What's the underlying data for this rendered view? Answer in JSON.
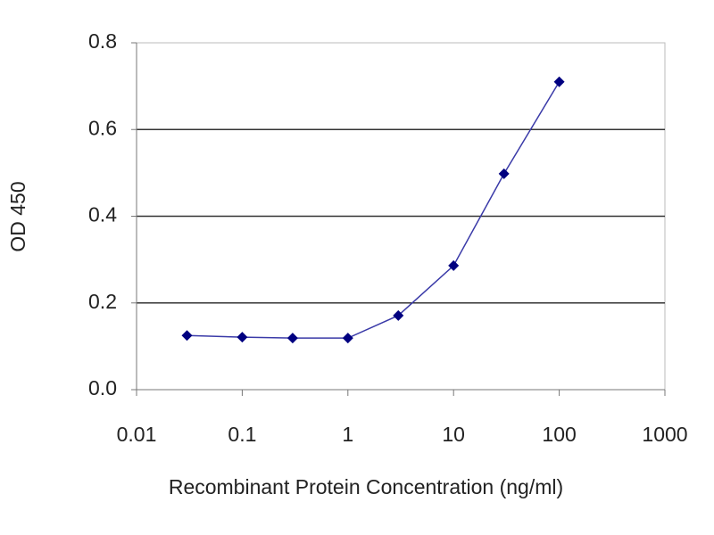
{
  "chart_data": {
    "type": "line",
    "xlabel": "Recombinant Protein Concentration (ng/ml)",
    "ylabel": "OD 450",
    "x": [
      0.03,
      0.1,
      0.3,
      1,
      3,
      10,
      30,
      100
    ],
    "series": [
      {
        "color": "#000080",
        "values": [
          0.125,
          0.121,
          0.119,
          0.119,
          0.171,
          0.286,
          0.498,
          0.71
        ]
      }
    ],
    "xlog": true,
    "xlim": [
      0.01,
      1000
    ],
    "xticks": [
      0.01,
      0.1,
      1,
      10,
      100,
      1000
    ],
    "ylim": [
      0,
      0.8
    ],
    "yticks": [
      {
        "value": 0,
        "label": "0.0"
      },
      0.2,
      0.4,
      0.6,
      0.8
    ],
    "grid": true
  }
}
